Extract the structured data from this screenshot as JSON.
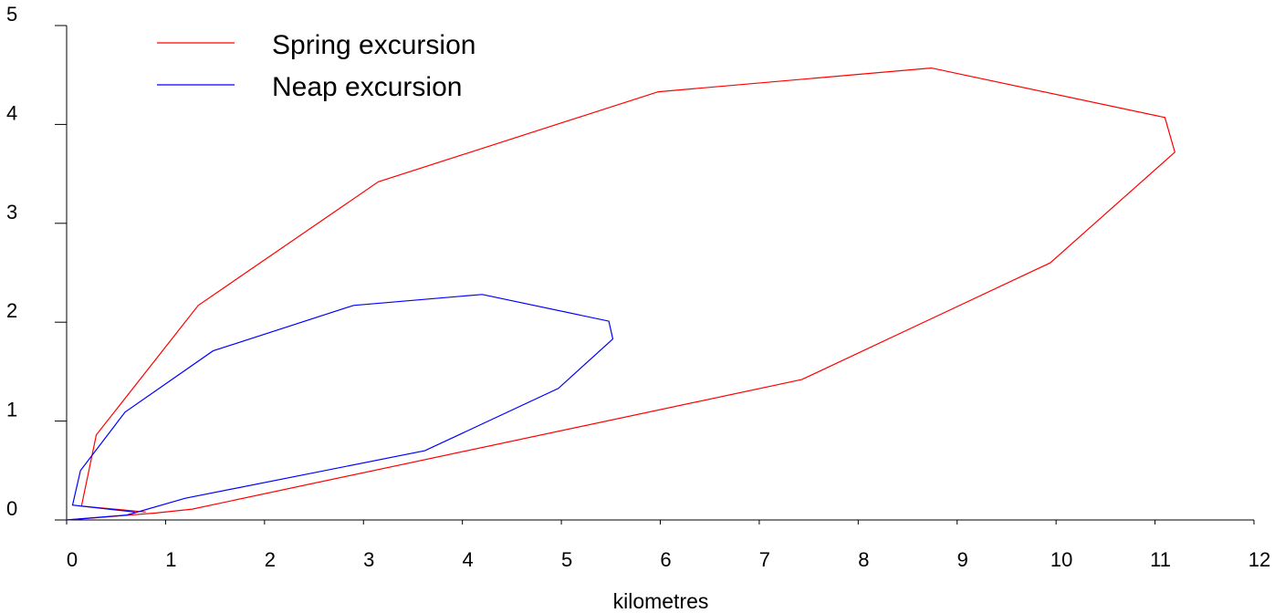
{
  "chart_data": {
    "type": "line",
    "title": "",
    "xlabel": "kilometres",
    "ylabel": "",
    "xlim": [
      0,
      12
    ],
    "ylim": [
      0,
      5
    ],
    "x_ticks": [
      "0",
      "1",
      "2",
      "3",
      "4",
      "5",
      "6",
      "7",
      "8",
      "9",
      "10",
      "11",
      "12"
    ],
    "y_ticks": [
      "0",
      "1",
      "2",
      "3",
      "4",
      "5"
    ],
    "grid": false,
    "legend": "top-left",
    "series": [
      {
        "name": "Spring excursion",
        "color": "#ff0000",
        "points": [
          [
            0,
            0
          ],
          [
            0.9,
            0.07
          ],
          [
            1.27,
            0.11
          ],
          [
            7.43,
            1.42
          ],
          [
            9.94,
            2.6
          ],
          [
            11.2,
            3.72
          ],
          [
            11.1,
            4.07
          ],
          [
            8.74,
            4.57
          ],
          [
            5.98,
            4.33
          ],
          [
            3.15,
            3.42
          ],
          [
            1.33,
            2.17
          ],
          [
            0.3,
            0.86
          ],
          [
            0.15,
            0.14
          ],
          [
            0.8,
            0.08
          ]
        ]
      },
      {
        "name": "Neap excursion",
        "color": "#0000ff",
        "points": [
          [
            0,
            0
          ],
          [
            0.61,
            0.05
          ],
          [
            1.2,
            0.22
          ],
          [
            3.62,
            0.7
          ],
          [
            4.97,
            1.33
          ],
          [
            5.52,
            1.83
          ],
          [
            5.48,
            2.01
          ],
          [
            4.2,
            2.28
          ],
          [
            2.9,
            2.17
          ],
          [
            1.48,
            1.71
          ],
          [
            0.59,
            1.09
          ],
          [
            0.14,
            0.5
          ],
          [
            0.06,
            0.15
          ],
          [
            0.69,
            0.08
          ]
        ]
      }
    ]
  }
}
